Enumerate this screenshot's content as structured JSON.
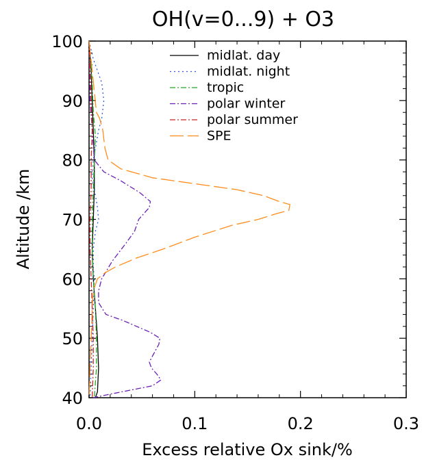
{
  "chart_data": {
    "type": "line",
    "title": "OH(v=0...9) + O3",
    "xlabel": "Excess relative Ox sink/%",
    "ylabel": "Altitude /km",
    "xlim": [
      0,
      0.3
    ],
    "ylim": [
      40,
      100
    ],
    "xticks": [
      "0.0",
      "0.1",
      "0.2",
      "0.3"
    ],
    "yticks": [
      "40",
      "50",
      "60",
      "70",
      "80",
      "90",
      "100"
    ],
    "grid": false,
    "legend_position": "top-right",
    "series": [
      {
        "name": "midlat. day",
        "color": "#000000",
        "dash": "solid",
        "points": [
          [
            0.0,
            100
          ],
          [
            0.002,
            95
          ],
          [
            0.003,
            90
          ],
          [
            0.004,
            85
          ],
          [
            0.005,
            80
          ],
          [
            0.005,
            75
          ],
          [
            0.004,
            70
          ],
          [
            0.003,
            65
          ],
          [
            0.004,
            60
          ],
          [
            0.006,
            55
          ],
          [
            0.008,
            50
          ],
          [
            0.009,
            45
          ],
          [
            0.008,
            41
          ],
          [
            0.006,
            40
          ]
        ]
      },
      {
        "name": "midlat. night",
        "color": "#3355dd",
        "dash": "dotted",
        "points": [
          [
            0.0,
            100
          ],
          [
            0.004,
            97
          ],
          [
            0.012,
            93
          ],
          [
            0.014,
            90
          ],
          [
            0.012,
            87
          ],
          [
            0.009,
            85
          ],
          [
            0.006,
            82
          ],
          [
            0.004,
            80
          ],
          [
            0.003,
            77
          ],
          [
            0.006,
            74
          ],
          [
            0.008,
            72
          ],
          [
            0.009,
            70
          ],
          [
            0.006,
            68
          ],
          [
            0.004,
            65
          ],
          [
            0.004,
            62
          ],
          [
            0.005,
            60
          ],
          [
            0.004,
            55
          ],
          [
            0.003,
            50
          ],
          [
            0.002,
            45
          ],
          [
            0.001,
            40
          ]
        ]
      },
      {
        "name": "tropic",
        "color": "#22aa22",
        "dash": "dashdot",
        "points": [
          [
            0.0,
            100
          ],
          [
            0.003,
            93
          ],
          [
            0.004,
            88
          ],
          [
            0.006,
            84
          ],
          [
            0.005,
            80
          ],
          [
            0.004,
            75
          ],
          [
            0.003,
            70
          ],
          [
            0.003,
            65
          ],
          [
            0.004,
            60
          ],
          [
            0.006,
            55
          ],
          [
            0.007,
            50
          ],
          [
            0.007,
            45
          ],
          [
            0.005,
            40
          ]
        ]
      },
      {
        "name": "polar winter",
        "color": "#6a1fb5",
        "dash": "dashdot",
        "points": [
          [
            0.0,
            100
          ],
          [
            0.001,
            90
          ],
          [
            0.003,
            85
          ],
          [
            0.005,
            80
          ],
          [
            0.014,
            78
          ],
          [
            0.03,
            76.5
          ],
          [
            0.048,
            74.5
          ],
          [
            0.058,
            73
          ],
          [
            0.057,
            72
          ],
          [
            0.052,
            71
          ],
          [
            0.047,
            70
          ],
          [
            0.043,
            68
          ],
          [
            0.035,
            66
          ],
          [
            0.022,
            63
          ],
          [
            0.012,
            60
          ],
          [
            0.009,
            58
          ],
          [
            0.009,
            56
          ],
          [
            0.016,
            54
          ],
          [
            0.032,
            53
          ],
          [
            0.045,
            52
          ],
          [
            0.058,
            51
          ],
          [
            0.067,
            50
          ],
          [
            0.066,
            49
          ],
          [
            0.06,
            47
          ],
          [
            0.057,
            46
          ],
          [
            0.059,
            45
          ],
          [
            0.064,
            44
          ],
          [
            0.068,
            43
          ],
          [
            0.06,
            42
          ],
          [
            0.04,
            41.3
          ],
          [
            0.02,
            40.6
          ],
          [
            0.004,
            40
          ]
        ]
      },
      {
        "name": "polar summer",
        "color": "#cc2222",
        "dash": "dashdot",
        "points": [
          [
            0.0,
            100
          ],
          [
            0.001,
            95
          ],
          [
            0.002,
            90
          ],
          [
            0.003,
            85
          ],
          [
            0.002,
            80
          ],
          [
            0.002,
            75
          ],
          [
            0.001,
            70
          ],
          [
            0.001,
            65
          ],
          [
            0.002,
            60
          ],
          [
            0.003,
            55
          ],
          [
            0.004,
            50
          ],
          [
            0.004,
            45
          ],
          [
            0.003,
            40
          ]
        ]
      },
      {
        "name": "SPE",
        "color": "#ff8c1a",
        "dash": "longdash",
        "points": [
          [
            0.0,
            100
          ],
          [
            0.003,
            95
          ],
          [
            0.007,
            88
          ],
          [
            0.01,
            87
          ],
          [
            0.013,
            85
          ],
          [
            0.015,
            82
          ],
          [
            0.018,
            80
          ],
          [
            0.03,
            78.5
          ],
          [
            0.06,
            77
          ],
          [
            0.1,
            76
          ],
          [
            0.14,
            75
          ],
          [
            0.165,
            74
          ],
          [
            0.18,
            73
          ],
          [
            0.19,
            72.5
          ],
          [
            0.189,
            71.5
          ],
          [
            0.178,
            71
          ],
          [
            0.16,
            70
          ],
          [
            0.135,
            69
          ],
          [
            0.1,
            67
          ],
          [
            0.07,
            65
          ],
          [
            0.045,
            63.5
          ],
          [
            0.025,
            62
          ],
          [
            0.015,
            61
          ],
          [
            0.008,
            60
          ],
          [
            0.004,
            58
          ],
          [
            0.003,
            55
          ],
          [
            0.002,
            50
          ],
          [
            0.001,
            45
          ],
          [
            0.0,
            40
          ]
        ]
      }
    ]
  }
}
